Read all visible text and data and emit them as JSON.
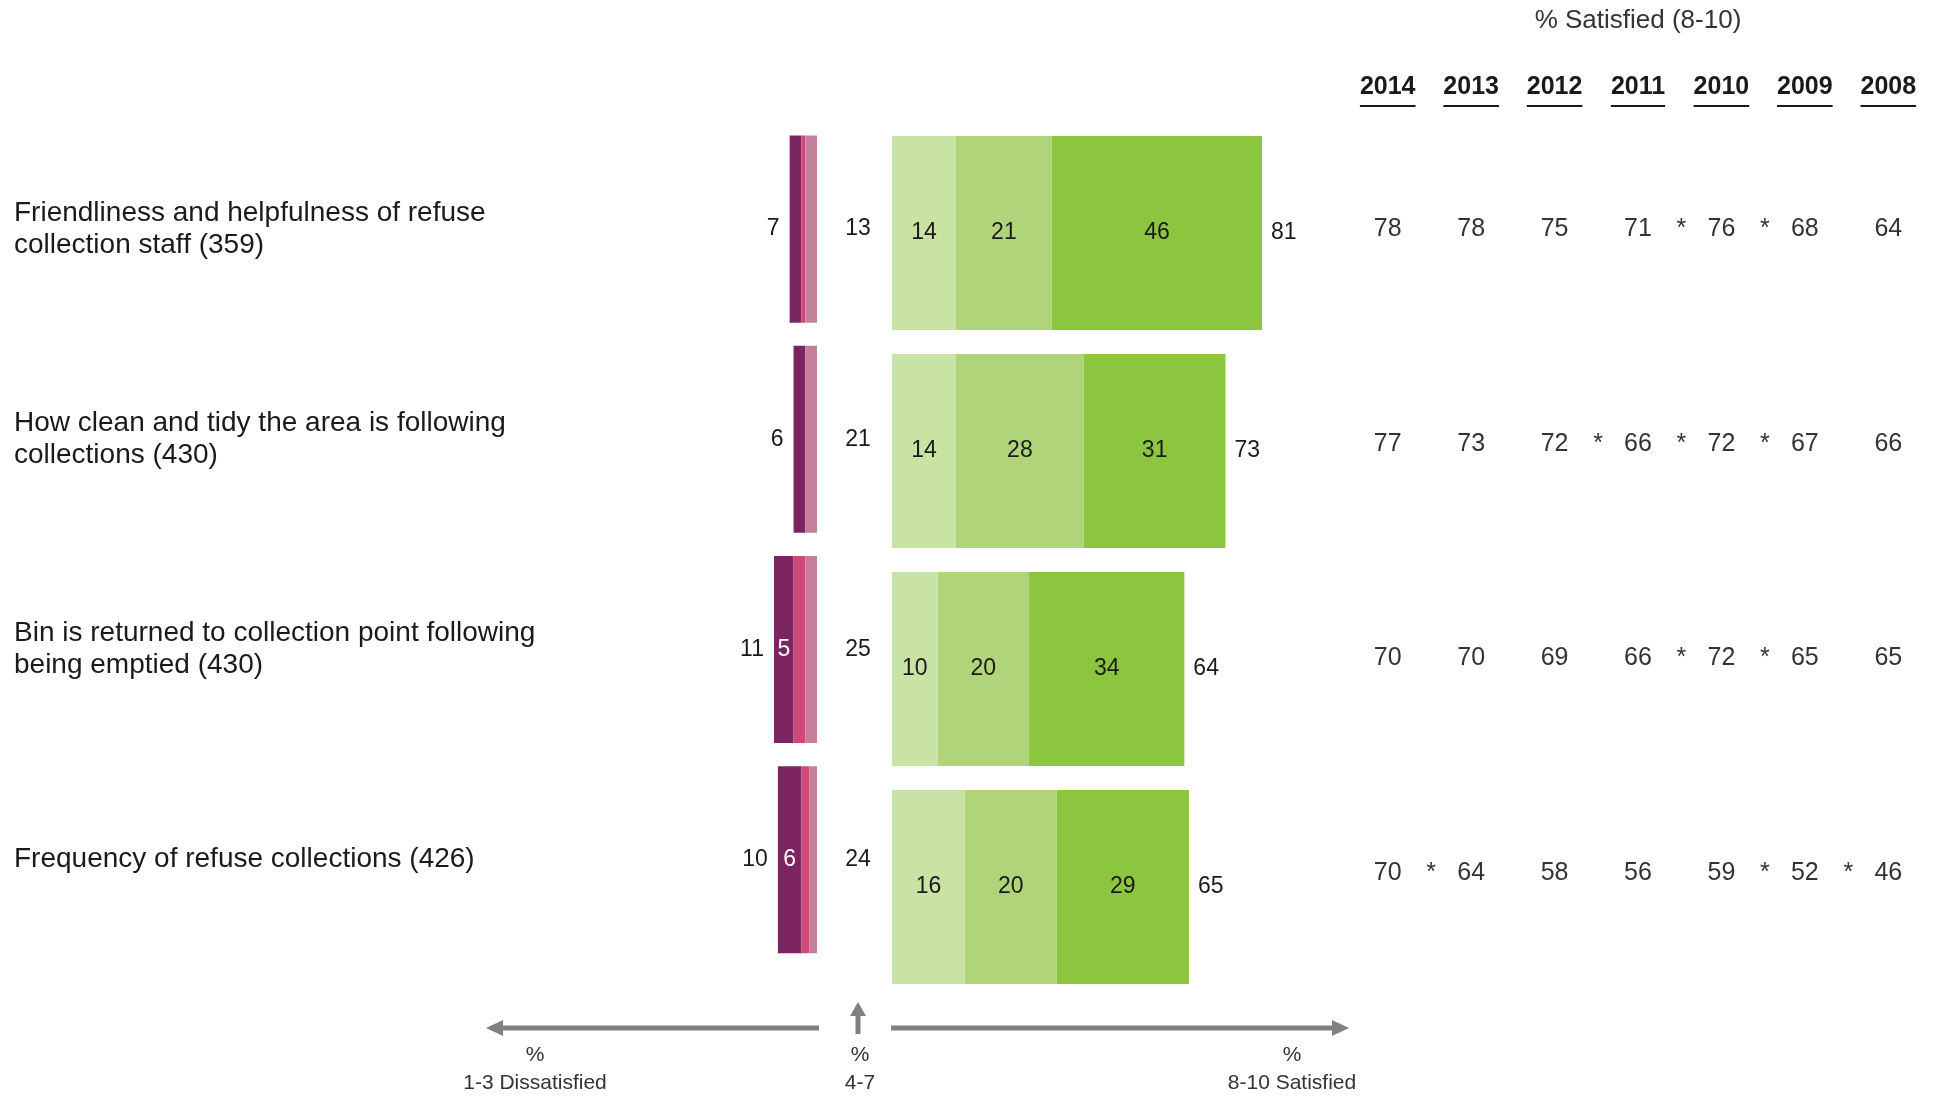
{
  "chart_data": [
    {
      "type": "bar",
      "orientation": "horizontal",
      "stacked": true,
      "categories": [
        "Friendliness and helpfulness of refuse collection staff (359)",
        "How clean and tidy the area is following collections (430)",
        "Bin is returned to collection point following being emptied (430)",
        "Frequency of refuse collections (426)"
      ],
      "series": [
        {
          "color": "#c4809b",
          "values": [
            3,
            3,
            3,
            2
          ]
        },
        {
          "color": "#cc4a78",
          "values": [
            1,
            0,
            3,
            2
          ]
        },
        {
          "color": "#7b2460",
          "values": [
            3,
            3,
            5,
            6
          ],
          "value_labels": [
            null,
            null,
            "5",
            "6"
          ]
        }
      ],
      "tick_labels": "y",
      "totals": [
        "7",
        "6",
        "11",
        "10"
      ],
      "annotations": [
        "13",
        "21",
        "25",
        "24",
        "%\n1-3 Dissatisfied",
        "%\n4-7"
      ]
    },
    {
      "type": "bar",
      "orientation": "horizontal",
      "stacked": true,
      "categories": [
        null,
        null,
        null,
        null
      ],
      "series": [
        {
          "color": "#c9e3a5",
          "values": [
            14,
            14,
            10,
            16
          ],
          "value_labels": [
            "14",
            "14",
            "10",
            "16"
          ]
        },
        {
          "color": "#b0d479",
          "values": [
            21,
            28,
            20,
            20
          ],
          "value_labels": [
            "21",
            "28",
            "20",
            "20"
          ]
        },
        {
          "color": "#8cc63f",
          "values": [
            46,
            31,
            34,
            29
          ],
          "value_labels": [
            "46",
            "31",
            "34",
            "29"
          ]
        }
      ],
      "tick_labels": false,
      "totals": [
        "81",
        "73",
        "64",
        "65"
      ],
      "annotations": [
        "%\n8-10 Satisfied"
      ]
    },
    {
      "type": "heatmap",
      "title": "% Satisfied (8-10)",
      "categories": [
        "2014",
        "2013",
        "2012",
        "2011",
        "2010",
        "2009",
        "2008"
      ],
      "y_categories": [
        null,
        null,
        null,
        null
      ],
      "cells": [
        [
          78,
          78,
          75,
          71,
          76,
          68,
          64
        ],
        [
          77,
          73,
          72,
          66,
          72,
          67,
          66
        ],
        [
          70,
          70,
          69,
          66,
          72,
          65,
          65
        ],
        [
          70,
          64,
          58,
          56,
          59,
          52,
          46
        ]
      ],
      "data_labels": true,
      "tick_labels": "x",
      "annotations": [
        "*",
        "*",
        "*",
        "*",
        "*",
        "*",
        "*",
        "*",
        "*",
        "*"
      ]
    }
  ]
}
